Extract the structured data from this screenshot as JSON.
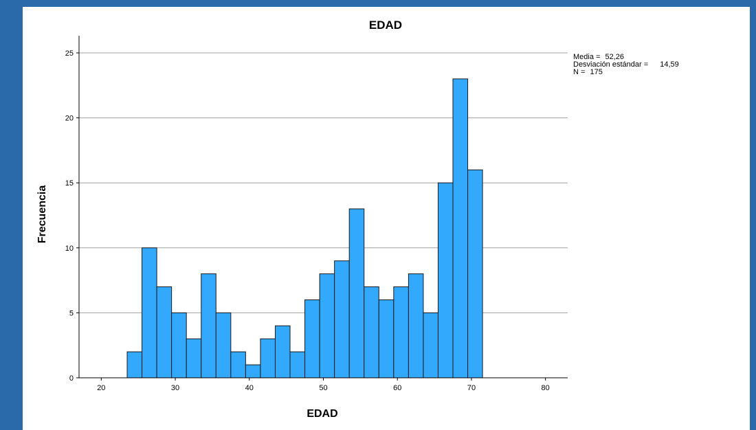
{
  "chart_data": {
    "type": "bar",
    "title": "EDAD",
    "xlabel": "EDAD",
    "ylabel": "Frecuencia",
    "x_ticks": [
      20,
      30,
      40,
      50,
      60,
      70,
      80
    ],
    "y_ticks": [
      0,
      5,
      10,
      15,
      20,
      25
    ],
    "xlim": [
      17,
      83
    ],
    "ylim": [
      0,
      25.5
    ],
    "grid": true,
    "bin_width": 2,
    "bins": [
      {
        "start": 23.5,
        "end": 25.5,
        "value": 2
      },
      {
        "start": 25.5,
        "end": 27.5,
        "value": 10
      },
      {
        "start": 27.5,
        "end": 29.5,
        "value": 7
      },
      {
        "start": 29.5,
        "end": 31.5,
        "value": 5
      },
      {
        "start": 31.5,
        "end": 33.5,
        "value": 3
      },
      {
        "start": 33.5,
        "end": 35.5,
        "value": 8
      },
      {
        "start": 35.5,
        "end": 37.5,
        "value": 5
      },
      {
        "start": 37.5,
        "end": 39.5,
        "value": 2
      },
      {
        "start": 39.5,
        "end": 41.5,
        "value": 1
      },
      {
        "start": 41.5,
        "end": 43.5,
        "value": 3
      },
      {
        "start": 43.5,
        "end": 45.5,
        "value": 4
      },
      {
        "start": 45.5,
        "end": 47.5,
        "value": 2
      },
      {
        "start": 47.5,
        "end": 49.5,
        "value": 6
      },
      {
        "start": 49.5,
        "end": 51.5,
        "value": 8
      },
      {
        "start": 51.5,
        "end": 53.5,
        "value": 9
      },
      {
        "start": 53.5,
        "end": 55.5,
        "value": 13
      },
      {
        "start": 55.5,
        "end": 57.5,
        "value": 7
      },
      {
        "start": 57.5,
        "end": 59.5,
        "value": 6
      },
      {
        "start": 59.5,
        "end": 61.5,
        "value": 7
      },
      {
        "start": 61.5,
        "end": 63.5,
        "value": 8
      },
      {
        "start": 63.5,
        "end": 65.5,
        "value": 5
      },
      {
        "start": 65.5,
        "end": 67.5,
        "value": 15
      },
      {
        "start": 67.5,
        "end": 69.5,
        "value": 23
      },
      {
        "start": 69.5,
        "end": 71.5,
        "value": 16
      }
    ],
    "colors": {
      "bar_fill": "#33a9fd",
      "bar_stroke": "#1a1a1a",
      "grid": "#a0a0a0",
      "axis": "#000000",
      "background": "#ffffff",
      "frame": "#2a6aab"
    }
  },
  "stats": {
    "media_label": "Media =",
    "media_value": "52,26",
    "sd_label": "Desviación estándar =",
    "sd_value": "14,59",
    "n_label": "N =",
    "n_value": "175"
  }
}
